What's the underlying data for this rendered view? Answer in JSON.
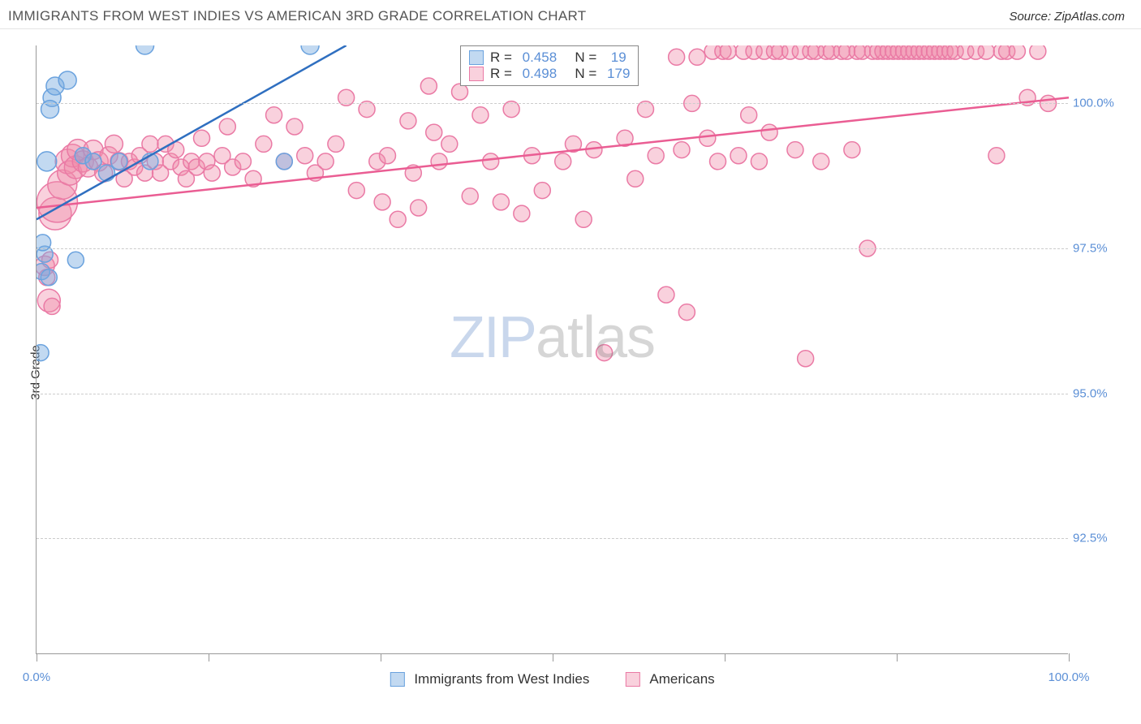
{
  "header": {
    "title": "IMMIGRANTS FROM WEST INDIES VS AMERICAN 3RD GRADE CORRELATION CHART",
    "source": "Source: ZipAtlas.com"
  },
  "chart": {
    "type": "scatter",
    "ylabel": "3rd Grade",
    "xlim": [
      0,
      100
    ],
    "ylim": [
      90.5,
      101.0
    ],
    "yticks": [
      92.5,
      95.0,
      97.5,
      100.0
    ],
    "ytick_labels": [
      "92.5%",
      "95.0%",
      "97.5%",
      "100.0%"
    ],
    "xticks": [
      0,
      16.67,
      33.33,
      50,
      66.67,
      83.33,
      100
    ],
    "x_axis_labels": {
      "left": "0.0%",
      "right": "100.0%"
    },
    "background_color": "#ffffff",
    "grid_color": "#cccccc",
    "axis_color": "#999999",
    "watermark": {
      "zip": "ZIP",
      "atlas": "atlas"
    },
    "series": [
      {
        "name": "Immigrants from West Indies",
        "color_fill": "rgba(120,170,225,0.45)",
        "color_stroke": "#6aa2de",
        "line_color": "#2f6fc0",
        "R": "0.458",
        "N": "19",
        "trend": {
          "x1": 0,
          "y1": 98.0,
          "x2": 30,
          "y2": 101.0
        },
        "points": [
          {
            "x": 0.5,
            "y": 97.1,
            "r": 10
          },
          {
            "x": 0.8,
            "y": 97.4,
            "r": 10
          },
          {
            "x": 0.6,
            "y": 97.6,
            "r": 10
          },
          {
            "x": 0.4,
            "y": 95.7,
            "r": 10
          },
          {
            "x": 1.2,
            "y": 97.0,
            "r": 10
          },
          {
            "x": 1.0,
            "y": 99.0,
            "r": 12
          },
          {
            "x": 1.5,
            "y": 100.1,
            "r": 11
          },
          {
            "x": 1.3,
            "y": 99.9,
            "r": 11
          },
          {
            "x": 1.8,
            "y": 100.3,
            "r": 11
          },
          {
            "x": 3.0,
            "y": 100.4,
            "r": 11
          },
          {
            "x": 3.8,
            "y": 97.3,
            "r": 10
          },
          {
            "x": 4.5,
            "y": 99.1,
            "r": 10
          },
          {
            "x": 5.5,
            "y": 99.0,
            "r": 10
          },
          {
            "x": 6.8,
            "y": 98.8,
            "r": 10
          },
          {
            "x": 8.0,
            "y": 99.0,
            "r": 10
          },
          {
            "x": 10.5,
            "y": 101.0,
            "r": 11
          },
          {
            "x": 11.0,
            "y": 99.0,
            "r": 10
          },
          {
            "x": 26.5,
            "y": 101.0,
            "r": 11
          },
          {
            "x": 24.0,
            "y": 99.0,
            "r": 10
          }
        ]
      },
      {
        "name": "Americans",
        "color_fill": "rgba(240,140,170,0.40)",
        "color_stroke": "#ea7aa5",
        "line_color": "#ea5d93",
        "R": "0.498",
        "N": "179",
        "trend": {
          "x1": 0,
          "y1": 98.2,
          "x2": 100,
          "y2": 100.1
        },
        "points": [
          {
            "x": 0.8,
            "y": 97.2,
            "r": 12
          },
          {
            "x": 1.0,
            "y": 97.0,
            "r": 10
          },
          {
            "x": 1.2,
            "y": 96.6,
            "r": 14
          },
          {
            "x": 1.5,
            "y": 96.5,
            "r": 10
          },
          {
            "x": 1.3,
            "y": 97.3,
            "r": 10
          },
          {
            "x": 1.8,
            "y": 98.1,
            "r": 20
          },
          {
            "x": 2.0,
            "y": 98.3,
            "r": 25
          },
          {
            "x": 2.5,
            "y": 98.6,
            "r": 18
          },
          {
            "x": 3.0,
            "y": 99.0,
            "r": 15
          },
          {
            "x": 3.2,
            "y": 98.8,
            "r": 15
          },
          {
            "x": 3.5,
            "y": 99.1,
            "r": 14
          },
          {
            "x": 3.8,
            "y": 98.9,
            "r": 14
          },
          {
            "x": 4.0,
            "y": 99.2,
            "r": 13
          },
          {
            "x": 4.5,
            "y": 99.0,
            "r": 13
          },
          {
            "x": 5.0,
            "y": 98.9,
            "r": 12
          },
          {
            "x": 5.5,
            "y": 99.2,
            "r": 12
          },
          {
            "x": 6.0,
            "y": 99.0,
            "r": 12
          },
          {
            "x": 6.5,
            "y": 98.8,
            "r": 11
          },
          {
            "x": 7.0,
            "y": 99.1,
            "r": 11
          },
          {
            "x": 7.5,
            "y": 99.3,
            "r": 11
          },
          {
            "x": 8.0,
            "y": 99.0,
            "r": 11
          },
          {
            "x": 8.5,
            "y": 98.7,
            "r": 10
          },
          {
            "x": 9.0,
            "y": 99.0,
            "r": 10
          },
          {
            "x": 9.5,
            "y": 98.9,
            "r": 10
          },
          {
            "x": 10.0,
            "y": 99.1,
            "r": 10
          },
          {
            "x": 10.5,
            "y": 98.8,
            "r": 10
          },
          {
            "x": 11.0,
            "y": 99.3,
            "r": 10
          },
          {
            "x": 11.5,
            "y": 99.0,
            "r": 10
          },
          {
            "x": 12.0,
            "y": 98.8,
            "r": 10
          },
          {
            "x": 12.5,
            "y": 99.3,
            "r": 10
          },
          {
            "x": 13.0,
            "y": 99.0,
            "r": 10
          },
          {
            "x": 13.5,
            "y": 99.2,
            "r": 10
          },
          {
            "x": 14.0,
            "y": 98.9,
            "r": 10
          },
          {
            "x": 14.5,
            "y": 98.7,
            "r": 10
          },
          {
            "x": 15.0,
            "y": 99.0,
            "r": 10
          },
          {
            "x": 15.5,
            "y": 98.9,
            "r": 10
          },
          {
            "x": 16.0,
            "y": 99.4,
            "r": 10
          },
          {
            "x": 16.5,
            "y": 99.0,
            "r": 10
          },
          {
            "x": 17.0,
            "y": 98.8,
            "r": 10
          },
          {
            "x": 18.0,
            "y": 99.1,
            "r": 10
          },
          {
            "x": 18.5,
            "y": 99.6,
            "r": 10
          },
          {
            "x": 19.0,
            "y": 98.9,
            "r": 10
          },
          {
            "x": 20.0,
            "y": 99.0,
            "r": 10
          },
          {
            "x": 21.0,
            "y": 98.7,
            "r": 10
          },
          {
            "x": 22.0,
            "y": 99.3,
            "r": 10
          },
          {
            "x": 23.0,
            "y": 99.8,
            "r": 10
          },
          {
            "x": 24.0,
            "y": 99.0,
            "r": 10
          },
          {
            "x": 25.0,
            "y": 99.6,
            "r": 10
          },
          {
            "x": 26.0,
            "y": 99.1,
            "r": 10
          },
          {
            "x": 27.0,
            "y": 98.8,
            "r": 10
          },
          {
            "x": 28.0,
            "y": 99.0,
            "r": 10
          },
          {
            "x": 29.0,
            "y": 99.3,
            "r": 10
          },
          {
            "x": 30.0,
            "y": 100.1,
            "r": 10
          },
          {
            "x": 31.0,
            "y": 98.5,
            "r": 10
          },
          {
            "x": 32.0,
            "y": 99.9,
            "r": 10
          },
          {
            "x": 33.0,
            "y": 99.0,
            "r": 10
          },
          {
            "x": 33.5,
            "y": 98.3,
            "r": 10
          },
          {
            "x": 34.0,
            "y": 99.1,
            "r": 10
          },
          {
            "x": 35.0,
            "y": 98.0,
            "r": 10
          },
          {
            "x": 36.0,
            "y": 99.7,
            "r": 10
          },
          {
            "x": 36.5,
            "y": 98.8,
            "r": 10
          },
          {
            "x": 37.0,
            "y": 98.2,
            "r": 10
          },
          {
            "x": 38.0,
            "y": 100.3,
            "r": 10
          },
          {
            "x": 38.5,
            "y": 99.5,
            "r": 10
          },
          {
            "x": 39.0,
            "y": 99.0,
            "r": 10
          },
          {
            "x": 40.0,
            "y": 99.3,
            "r": 10
          },
          {
            "x": 41.0,
            "y": 100.2,
            "r": 10
          },
          {
            "x": 42.0,
            "y": 98.4,
            "r": 10
          },
          {
            "x": 43.0,
            "y": 99.8,
            "r": 10
          },
          {
            "x": 44.0,
            "y": 99.0,
            "r": 10
          },
          {
            "x": 45.0,
            "y": 98.3,
            "r": 10
          },
          {
            "x": 46.0,
            "y": 99.9,
            "r": 10
          },
          {
            "x": 47.0,
            "y": 98.1,
            "r": 10
          },
          {
            "x": 48.0,
            "y": 99.1,
            "r": 10
          },
          {
            "x": 49.0,
            "y": 98.5,
            "r": 10
          },
          {
            "x": 50.0,
            "y": 100.5,
            "r": 10
          },
          {
            "x": 51.0,
            "y": 99.0,
            "r": 10
          },
          {
            "x": 52.0,
            "y": 99.3,
            "r": 10
          },
          {
            "x": 53.0,
            "y": 98.0,
            "r": 10
          },
          {
            "x": 54.0,
            "y": 99.2,
            "r": 10
          },
          {
            "x": 55.0,
            "y": 95.7,
            "r": 10
          },
          {
            "x": 56.0,
            "y": 100.5,
            "r": 10
          },
          {
            "x": 57.0,
            "y": 99.4,
            "r": 10
          },
          {
            "x": 58.0,
            "y": 98.7,
            "r": 10
          },
          {
            "x": 59.0,
            "y": 99.9,
            "r": 10
          },
          {
            "x": 60.0,
            "y": 99.1,
            "r": 10
          },
          {
            "x": 61.0,
            "y": 96.7,
            "r": 10
          },
          {
            "x": 62.0,
            "y": 100.8,
            "r": 10
          },
          {
            "x": 62.5,
            "y": 99.2,
            "r": 10
          },
          {
            "x": 63.0,
            "y": 96.4,
            "r": 10
          },
          {
            "x": 63.5,
            "y": 100.0,
            "r": 10
          },
          {
            "x": 64.0,
            "y": 100.8,
            "r": 10
          },
          {
            "x": 65.0,
            "y": 99.4,
            "r": 10
          },
          {
            "x": 65.5,
            "y": 100.9,
            "r": 10
          },
          {
            "x": 66.0,
            "y": 99.0,
            "r": 10
          },
          {
            "x": 66.5,
            "y": 100.9,
            "r": 10
          },
          {
            "x": 67.0,
            "y": 100.9,
            "r": 10
          },
          {
            "x": 68.0,
            "y": 99.1,
            "r": 10
          },
          {
            "x": 68.5,
            "y": 100.9,
            "r": 10
          },
          {
            "x": 69.0,
            "y": 99.8,
            "r": 10
          },
          {
            "x": 69.5,
            "y": 100.9,
            "r": 10
          },
          {
            "x": 70.0,
            "y": 99.0,
            "r": 10
          },
          {
            "x": 70.5,
            "y": 100.9,
            "r": 10
          },
          {
            "x": 71.0,
            "y": 99.5,
            "r": 10
          },
          {
            "x": 71.5,
            "y": 100.9,
            "r": 10
          },
          {
            "x": 72.0,
            "y": 100.9,
            "r": 10
          },
          {
            "x": 73.0,
            "y": 100.9,
            "r": 10
          },
          {
            "x": 73.5,
            "y": 99.2,
            "r": 10
          },
          {
            "x": 74.0,
            "y": 100.9,
            "r": 10
          },
          {
            "x": 74.5,
            "y": 95.6,
            "r": 10
          },
          {
            "x": 75.0,
            "y": 100.9,
            "r": 10
          },
          {
            "x": 75.5,
            "y": 100.9,
            "r": 10
          },
          {
            "x": 76.0,
            "y": 99.0,
            "r": 10
          },
          {
            "x": 76.5,
            "y": 100.9,
            "r": 10
          },
          {
            "x": 77.0,
            "y": 100.9,
            "r": 10
          },
          {
            "x": 78.0,
            "y": 100.9,
            "r": 10
          },
          {
            "x": 78.5,
            "y": 100.9,
            "r": 10
          },
          {
            "x": 79.0,
            "y": 99.2,
            "r": 10
          },
          {
            "x": 79.5,
            "y": 100.9,
            "r": 10
          },
          {
            "x": 80.0,
            "y": 100.9,
            "r": 10
          },
          {
            "x": 80.5,
            "y": 97.5,
            "r": 10
          },
          {
            "x": 81.0,
            "y": 100.9,
            "r": 10
          },
          {
            "x": 81.5,
            "y": 100.9,
            "r": 10
          },
          {
            "x": 82.0,
            "y": 100.9,
            "r": 10
          },
          {
            "x": 82.5,
            "y": 100.9,
            "r": 10
          },
          {
            "x": 83.0,
            "y": 100.9,
            "r": 10
          },
          {
            "x": 83.5,
            "y": 100.9,
            "r": 10
          },
          {
            "x": 84.0,
            "y": 100.9,
            "r": 10
          },
          {
            "x": 84.5,
            "y": 100.9,
            "r": 10
          },
          {
            "x": 85.0,
            "y": 100.9,
            "r": 10
          },
          {
            "x": 85.5,
            "y": 100.9,
            "r": 10
          },
          {
            "x": 86.0,
            "y": 100.9,
            "r": 10
          },
          {
            "x": 86.5,
            "y": 100.9,
            "r": 10
          },
          {
            "x": 87.0,
            "y": 100.9,
            "r": 10
          },
          {
            "x": 87.5,
            "y": 100.9,
            "r": 10
          },
          {
            "x": 88.0,
            "y": 100.9,
            "r": 10
          },
          {
            "x": 88.5,
            "y": 100.9,
            "r": 10
          },
          {
            "x": 89.0,
            "y": 100.9,
            "r": 10
          },
          {
            "x": 90.0,
            "y": 100.9,
            "r": 10
          },
          {
            "x": 91.0,
            "y": 100.9,
            "r": 10
          },
          {
            "x": 92.0,
            "y": 100.9,
            "r": 10
          },
          {
            "x": 93.0,
            "y": 99.1,
            "r": 10
          },
          {
            "x": 93.5,
            "y": 100.9,
            "r": 10
          },
          {
            "x": 94.0,
            "y": 100.9,
            "r": 10
          },
          {
            "x": 95.0,
            "y": 100.9,
            "r": 10
          },
          {
            "x": 96.0,
            "y": 100.1,
            "r": 10
          },
          {
            "x": 97.0,
            "y": 100.9,
            "r": 10
          },
          {
            "x": 98.0,
            "y": 100.0,
            "r": 10
          }
        ]
      }
    ],
    "legend_bottom": [
      {
        "label": "Immigrants from West Indies",
        "fill": "rgba(120,170,225,0.45)",
        "stroke": "#6aa2de"
      },
      {
        "label": "Americans",
        "fill": "rgba(240,140,170,0.40)",
        "stroke": "#ea7aa5"
      }
    ]
  }
}
